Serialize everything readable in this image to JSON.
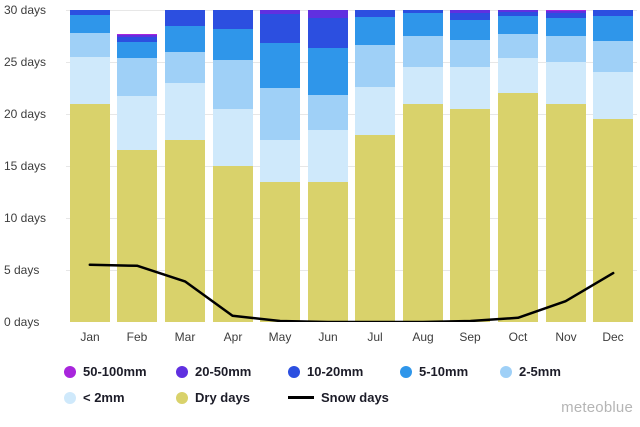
{
  "watermark": "meteoblue",
  "chart_data": {
    "type": "bar",
    "subtype": "stacked-bars-with-line-overlay",
    "categories": [
      "Jan",
      "Feb",
      "Mar",
      "Apr",
      "May",
      "Jun",
      "Jul",
      "Aug",
      "Sep",
      "Oct",
      "Nov",
      "Dec"
    ],
    "y_axis": {
      "min": 0,
      "max": 30,
      "tick_step": 5,
      "tick_suffix": " days"
    },
    "y_tick_labels": [
      "0 days",
      "5 days",
      "10 days",
      "15 days",
      "20 days",
      "25 days",
      "30 days"
    ],
    "grid": "horizontal",
    "legend_position": "bottom",
    "series": [
      {
        "name": "Dry days",
        "color": "#d9d26b",
        "values": [
          21.0,
          16.5,
          17.5,
          15.0,
          13.5,
          13.5,
          18.0,
          21.0,
          20.5,
          22.0,
          21.0,
          19.5
        ]
      },
      {
        "name": "< 2mm",
        "color": "#cfe9fb",
        "values": [
          4.5,
          5.2,
          5.5,
          5.5,
          4.0,
          5.0,
          4.6,
          3.5,
          4.0,
          3.4,
          4.0,
          4.5
        ]
      },
      {
        "name": "2-5mm",
        "color": "#9fd0f7",
        "values": [
          2.3,
          3.7,
          3.0,
          4.7,
          5.0,
          3.3,
          4.0,
          3.0,
          2.6,
          2.3,
          2.5,
          3.0
        ]
      },
      {
        "name": "5-10mm",
        "color": "#2f96ea",
        "values": [
          1.7,
          1.5,
          2.5,
          3.0,
          4.3,
          4.5,
          2.7,
          2.2,
          1.9,
          1.7,
          1.7,
          2.4
        ]
      },
      {
        "name": "10-20mm",
        "color": "#2c4fe0",
        "values": [
          1.0,
          0.5,
          2.0,
          2.3,
          2.8,
          2.9,
          1.2,
          1.3,
          0.7,
          0.4,
          0.5,
          1.4
        ]
      },
      {
        "name": "20-50mm",
        "color": "#6030e0",
        "values": [
          0,
          0.2,
          0,
          0,
          0.8,
          0.8,
          0,
          0,
          0.3,
          0.2,
          0.2,
          0
        ]
      },
      {
        "name": "50-100mm",
        "color": "#a825dc",
        "values": [
          0,
          0.1,
          0,
          0,
          0,
          0,
          0,
          0,
          0.2,
          0.1,
          0.1,
          0
        ]
      }
    ],
    "line_series": {
      "name": "Snow days",
      "color": "#000000",
      "values": [
        5.5,
        5.4,
        3.9,
        0.6,
        0.1,
        0,
        0,
        0,
        0.1,
        0.4,
        2.0,
        4.7
      ]
    },
    "legend_items": [
      {
        "label": "50-100mm",
        "marker": "circle",
        "color": "#a825dc"
      },
      {
        "label": "20-50mm",
        "marker": "circle",
        "color": "#6030e0"
      },
      {
        "label": "10-20mm",
        "marker": "circle",
        "color": "#2c4fe0"
      },
      {
        "label": "5-10mm",
        "marker": "circle",
        "color": "#2f96ea"
      },
      {
        "label": "2-5mm",
        "marker": "circle",
        "color": "#9fd0f7"
      },
      {
        "label": "< 2mm",
        "marker": "circle",
        "color": "#cfe9fb"
      },
      {
        "label": "Dry days",
        "marker": "circle",
        "color": "#d9d26b"
      },
      {
        "label": "Snow days",
        "marker": "line",
        "color": "#000000"
      }
    ]
  }
}
